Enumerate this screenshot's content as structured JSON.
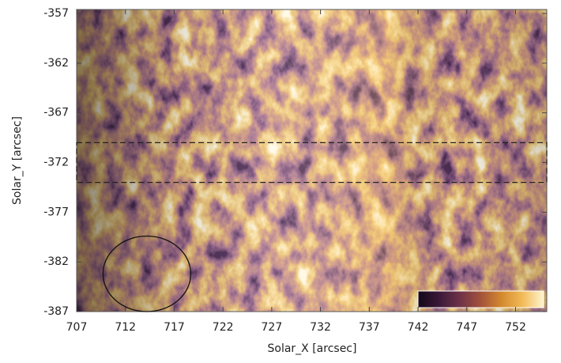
{
  "chart_data": {
    "type": "image",
    "xlabel": "Solar_X [arcsec]",
    "ylabel": "Solar_Y [arcsec]",
    "xlim": [
      707,
      755.2
    ],
    "ylim": [
      -387,
      -356.6
    ],
    "xticks": [
      707,
      712,
      717,
      722,
      727,
      732,
      737,
      742,
      747,
      752
    ],
    "yticks": [
      -357,
      -362,
      -367,
      -372,
      -377,
      -382,
      -387
    ],
    "colormap": [
      "#140818",
      "#3a1838",
      "#6e3248",
      "#a4523a",
      "#d48a2e",
      "#f2bc58",
      "#fff4d0"
    ],
    "annotations": [
      {
        "shape": "rect",
        "style": "dashed",
        "x": [
          707,
          755.2
        ],
        "y": [
          -374,
          -370
        ]
      },
      {
        "shape": "ellipse",
        "center": [
          714.2,
          -383.2
        ],
        "radius": [
          4.5,
          3.8
        ]
      }
    ]
  }
}
